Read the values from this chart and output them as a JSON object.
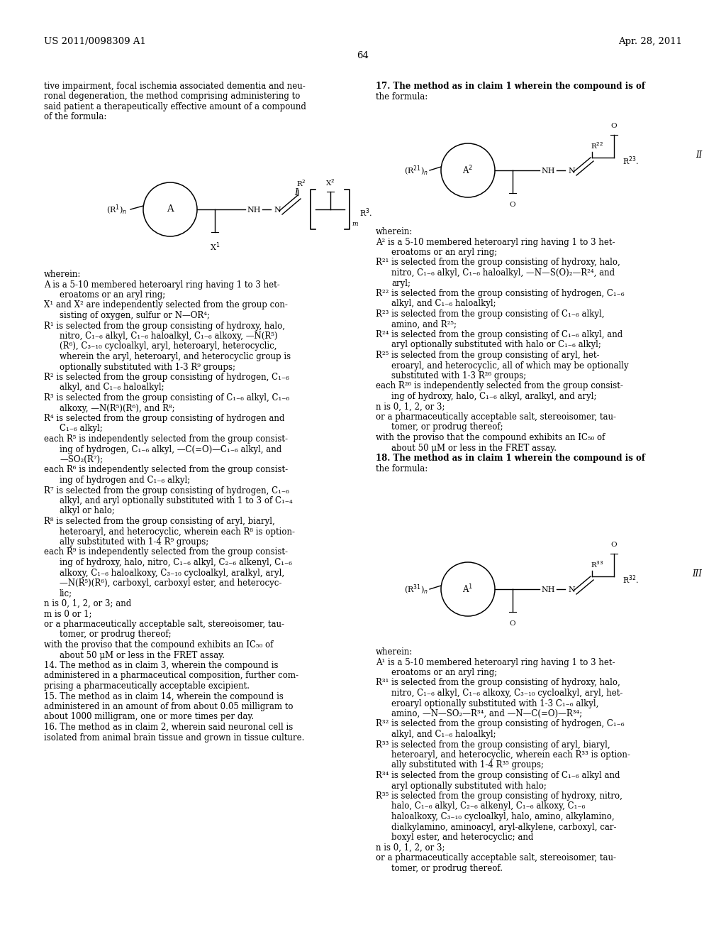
{
  "bg_color": "#ffffff",
  "header_left": "US 2011/0098309 A1",
  "header_right": "Apr. 28, 2011",
  "page_number": "64",
  "font_size_body": 8.5,
  "font_size_header": 9.5,
  "left_text_top": "tive impairment, focal ischemia associated dementia and neu-\nronal degeneration, the method comprising administering to\nsaid patient a therapeutically effective amount of a compound\nof the formula:",
  "left_wherein_lines": [
    [
      "wherein:",
      false
    ],
    [
      "A is a 5-10 membered heteroaryl ring having 1 to 3 het-",
      false
    ],
    [
      "eroatoms or an aryl ring;",
      true
    ],
    [
      "X¹ and X² are independently selected from the group con-",
      false
    ],
    [
      "sisting of oxygen, sulfur or N—OR⁴;",
      true
    ],
    [
      "R¹ is selected from the group consisting of hydroxy, halo,",
      false
    ],
    [
      "nitro, C₁₋₆ alkyl, C₁₋₆ haloalkyl, C₁₋₆ alkoxy, —N(R⁵)",
      true
    ],
    [
      "(R⁶), C₃₋₁₀ cycloalkyl, aryl, heteroaryl, heterocyclic,",
      true
    ],
    [
      "wherein the aryl, heteroaryl, and heterocyclic group is",
      true
    ],
    [
      "optionally substituted with 1-3 R⁹ groups;",
      true
    ],
    [
      "R² is selected from the group consisting of hydrogen, C₁₋₆",
      false
    ],
    [
      "alkyl, and C₁₋₆ haloalkyl;",
      true
    ],
    [
      "R³ is selected from the group consisting of C₁₋₆ alkyl, C₁₋₆",
      false
    ],
    [
      "alkoxy, —N(R⁵)(R⁶), and R⁸;",
      true
    ],
    [
      "R⁴ is selected from the group consisting of hydrogen and",
      false
    ],
    [
      "C₁₋₆ alkyl;",
      true
    ],
    [
      "each R⁵ is independently selected from the group consist-",
      false
    ],
    [
      "ing of hydrogen, C₁₋₆ alkyl, —C(=O)—C₁₋₆ alkyl, and",
      true
    ],
    [
      "—SO₂(R⁷);",
      true
    ],
    [
      "each R⁶ is independently selected from the group consist-",
      false
    ],
    [
      "ing of hydrogen and C₁₋₆ alkyl;",
      true
    ],
    [
      "R⁷ is selected from the group consisting of hydrogen, C₁₋₆",
      false
    ],
    [
      "alkyl, and aryl optionally substituted with 1 to 3 of C₁₋₄",
      true
    ],
    [
      "alkyl or halo;",
      true
    ],
    [
      "R⁸ is selected from the group consisting of aryl, biaryl,",
      false
    ],
    [
      "heteroaryl, and heterocyclic, wherein each R⁸ is option-",
      true
    ],
    [
      "ally substituted with 1-4 R⁹ groups;",
      true
    ],
    [
      "each R⁹ is independently selected from the group consist-",
      false
    ],
    [
      "ing of hydroxy, halo, nitro, C₁₋₆ alkyl, C₂₋₆ alkenyl, C₁₋₆",
      true
    ],
    [
      "alkoxy, C₁₋₆ haloalkoxy, C₃₋₁₀ cycloalkyl, aralkyl, aryl,",
      true
    ],
    [
      "—N(R⁵)(R⁶), carboxyl, carboxyl ester, and heterocyc-",
      true
    ],
    [
      "lic;",
      true
    ],
    [
      "n is 0, 1, 2, or 3; and",
      false
    ],
    [
      "m is 0 or 1;",
      false
    ],
    [
      "or a pharmaceutically acceptable salt, stereoisomer, tau-",
      false
    ],
    [
      "tomer, or prodrug thereof;",
      true
    ],
    [
      "with the proviso that the compound exhibits an IC₅₀ of",
      false
    ],
    [
      "about 50 μM or less in the FRET assay.",
      true
    ],
    [
      "14. The method as in claim 3, wherein the compound is",
      false
    ],
    [
      "administered in a pharmaceutical composition, further com-",
      false
    ],
    [
      "prising a pharmaceutically acceptable excipient.",
      false
    ],
    [
      "15. The method as in claim 14, wherein the compound is",
      false
    ],
    [
      "administered in an amount of from about 0.05 milligram to",
      false
    ],
    [
      "about 1000 milligram, one or more times per day.",
      false
    ],
    [
      "16. The method as in claim 2, wherein said neuronal cell is",
      false
    ],
    [
      "isolated from animal brain tissue and grown in tissue culture.",
      false
    ]
  ],
  "right_text_top": [
    "17. The method as in claim 1 wherein the compound is of",
    "the formula:"
  ],
  "right_wherein_II": [
    [
      "wherein:",
      false
    ],
    [
      "A² is a 5-10 membered heteroaryl ring having 1 to 3 het-",
      false
    ],
    [
      "eroatoms or an aryl ring;",
      true
    ],
    [
      "R²¹ is selected from the group consisting of hydroxy, halo,",
      false
    ],
    [
      "nitro, C₁₋₆ alkyl, C₁₋₆ haloalkyl, —N—S(O)₂—R²⁴, and",
      true
    ],
    [
      "aryl;",
      true
    ],
    [
      "R²² is selected from the group consisting of hydrogen, C₁₋₆",
      false
    ],
    [
      "alkyl, and C₁₋₆ haloalkyl;",
      true
    ],
    [
      "R²³ is selected from the group consisting of C₁₋₆ alkyl,",
      false
    ],
    [
      "amino, and R²⁵;",
      true
    ],
    [
      "R²⁴ is selected from the group consisting of C₁₋₆ alkyl, and",
      false
    ],
    [
      "aryl optionally substituted with halo or C₁₋₆ alkyl;",
      true
    ],
    [
      "R²⁵ is selected from the group consisting of aryl, het-",
      false
    ],
    [
      "eroaryl, and heterocyclic, all of which may be optionally",
      true
    ],
    [
      "substituted with 1-3 R²⁶ groups;",
      true
    ],
    [
      "each R²⁶ is independently selected from the group consist-",
      false
    ],
    [
      "ing of hydroxy, halo, C₁₋₆ alkyl, aralkyl, and aryl;",
      true
    ],
    [
      "n is 0, 1, 2, or 3;",
      false
    ],
    [
      "or a pharmaceutically acceptable salt, stereoisomer, tau-",
      false
    ],
    [
      "tomer, or prodrug thereof;",
      true
    ],
    [
      "with the proviso that the compound exhibits an IC₅₀ of",
      false
    ],
    [
      "about 50 μM or less in the FRET assay.",
      true
    ],
    [
      "18. The method as in claim 1 wherein the compound is of",
      false
    ],
    [
      "the formula:",
      false
    ]
  ],
  "right_wherein_III": [
    [
      "wherein:",
      false
    ],
    [
      "A¹ is a 5-10 membered heteroaryl ring having 1 to 3 het-",
      false
    ],
    [
      "eroatoms or an aryl ring;",
      true
    ],
    [
      "R³¹ is selected from the group consisting of hydroxy, halo,",
      false
    ],
    [
      "nitro, C₁₋₆ alkyl, C₁₋₆ alkoxy, C₃₋₁₀ cycloalkyl, aryl, het-",
      true
    ],
    [
      "eroaryl optionally substituted with 1-3 C₁₋₆ alkyl,",
      true
    ],
    [
      "amino, —N—SO₂—R³⁴, and —N—C(=O)—R³⁴;",
      true
    ],
    [
      "R³² is selected from the group consisting of hydrogen, C₁₋₆",
      false
    ],
    [
      "alkyl, and C₁₋₆ haloalkyl;",
      true
    ],
    [
      "R³³ is selected from the group consisting of aryl, biaryl,",
      false
    ],
    [
      "heteroaryl, and heterocyclic, wherein each R³³ is option-",
      true
    ],
    [
      "ally substituted with 1-4 R³⁵ groups;",
      true
    ],
    [
      "R³⁴ is selected from the group consisting of C₁₋₆ alkyl and",
      false
    ],
    [
      "aryl optionally substituted with halo;",
      true
    ],
    [
      "R³⁵ is selected from the group consisting of hydroxy, nitro,",
      false
    ],
    [
      "halo, C₁₋₆ alkyl, C₂₋₆ alkenyl, C₁₋₆ alkoxy, C₁₋₆",
      true
    ],
    [
      "haloalkoxy, C₃₋₁₀ cycloalkyl, halo, amino, alkylamino,",
      true
    ],
    [
      "dialkylamino, aminoacyl, aryl-alkylene, carboxyl, car-",
      true
    ],
    [
      "boxyl ester, and heterocyclic; and",
      true
    ],
    [
      "n is 0, 1, 2, or 3;",
      false
    ],
    [
      "or a pharmaceutically acceptable salt, stereoisomer, tau-",
      false
    ],
    [
      "tomer, or prodrug thereof.",
      true
    ]
  ]
}
